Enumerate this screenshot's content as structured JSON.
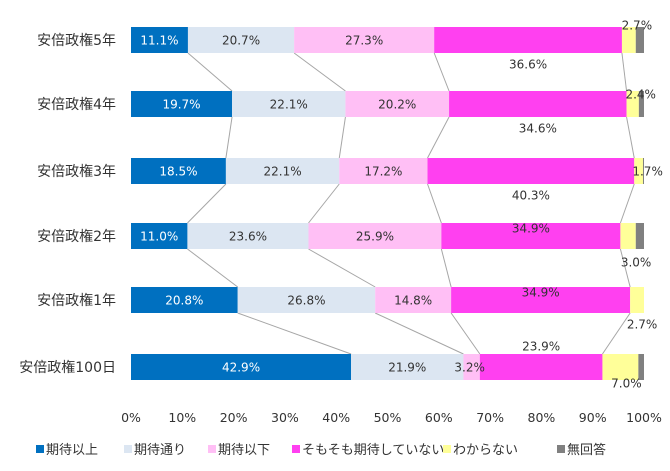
{
  "chart_data": {
    "type": "bar",
    "orientation": "horizontal",
    "stacked": true,
    "title": "",
    "xlabel": "",
    "ylabel": "",
    "xlim": [
      0,
      100
    ],
    "x_ticks": [
      "0%",
      "10%",
      "20%",
      "30%",
      "40%",
      "50%",
      "60%",
      "70%",
      "80%",
      "90%",
      "100%"
    ],
    "grid": false,
    "legend_position": "bottom",
    "categories": [
      "安倍政権5年",
      "安倍政権4年",
      "安倍政権3年",
      "安倍政権2年",
      "安倍政権1年",
      "安倍政権100日"
    ],
    "series": [
      {
        "name": "期待以上",
        "color": "#0070c0",
        "values": [
          11.1,
          19.7,
          18.5,
          11.0,
          20.8,
          42.9
        ],
        "labels": [
          "11.1%",
          "19.7%",
          "18.5%",
          "11.0%",
          "20.8%",
          "42.9%"
        ]
      },
      {
        "name": "期待通り",
        "color": "#dce6f2",
        "values": [
          20.7,
          22.1,
          22.1,
          23.6,
          26.8,
          21.9
        ],
        "labels": [
          "20.7%",
          "22.1%",
          "22.1%",
          "23.6%",
          "26.8%",
          "21.9%"
        ]
      },
      {
        "name": "期待以下",
        "color": "#ffbff5",
        "values": [
          27.3,
          20.2,
          17.2,
          25.9,
          14.8,
          3.2
        ],
        "labels": [
          "27.3%",
          "20.2%",
          "17.2%",
          "25.9%",
          "14.8%",
          "3.2%"
        ]
      },
      {
        "name": "そもそも期待していない",
        "color": "#ff40f0",
        "values": [
          36.6,
          34.6,
          40.3,
          34.9,
          34.9,
          23.9
        ],
        "labels": [
          "36.6%",
          "34.6%",
          "40.3%",
          "34.9%",
          "34.9%",
          "23.9%"
        ]
      },
      {
        "name": "わからない",
        "color": "#ffff99",
        "values": [
          2.7,
          2.4,
          1.7,
          3.0,
          2.7,
          7.0
        ],
        "labels": [
          "2.7%",
          "2.4%",
          "1.7%",
          "3.0%",
          "2.7%",
          "7.0%"
        ]
      },
      {
        "name": "無回答",
        "color": "#808080",
        "values": [
          1.6,
          1.0,
          0.2,
          1.6,
          0.0,
          1.1
        ],
        "labels": [
          "",
          "",
          "",
          "",
          "",
          ""
        ]
      }
    ]
  }
}
